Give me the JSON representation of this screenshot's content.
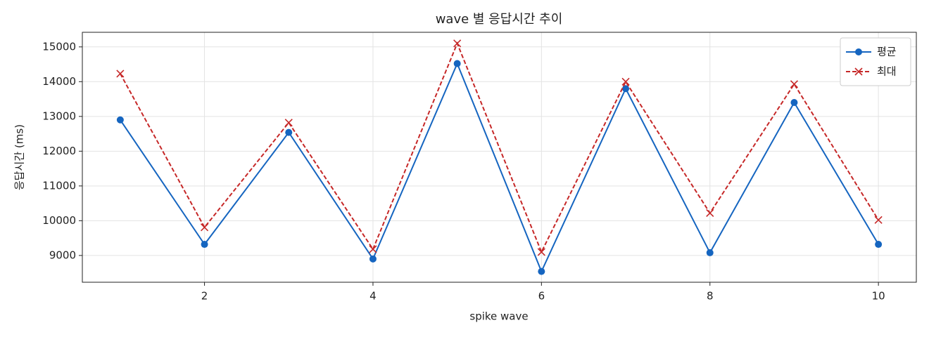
{
  "chart_data": {
    "type": "line",
    "title": "wave 별 응답시간 추이",
    "xlabel": "spike wave",
    "ylabel": "응답시간 (ms)",
    "x": [
      1,
      2,
      3,
      4,
      5,
      6,
      7,
      8,
      9,
      10
    ],
    "series": [
      {
        "name": "평균",
        "color": "#1565c0",
        "marker": "circle",
        "linestyle": "solid",
        "values": [
          12900,
          9320,
          12540,
          8900,
          14520,
          8540,
          13800,
          9080,
          13400,
          9320
        ]
      },
      {
        "name": "최대",
        "color": "#c62828",
        "marker": "x",
        "linestyle": "dashed",
        "values": [
          14230,
          9810,
          12820,
          9180,
          15100,
          9100,
          14000,
          10220,
          13930,
          10020
        ]
      }
    ],
    "xlim": [
      0.55,
      10.45
    ],
    "ylim": [
      8230,
      15420
    ],
    "xticks": [
      2,
      4,
      6,
      8,
      10
    ],
    "yticks": [
      9000,
      10000,
      11000,
      12000,
      13000,
      14000,
      15000
    ],
    "grid": true,
    "legend": "upper right"
  }
}
